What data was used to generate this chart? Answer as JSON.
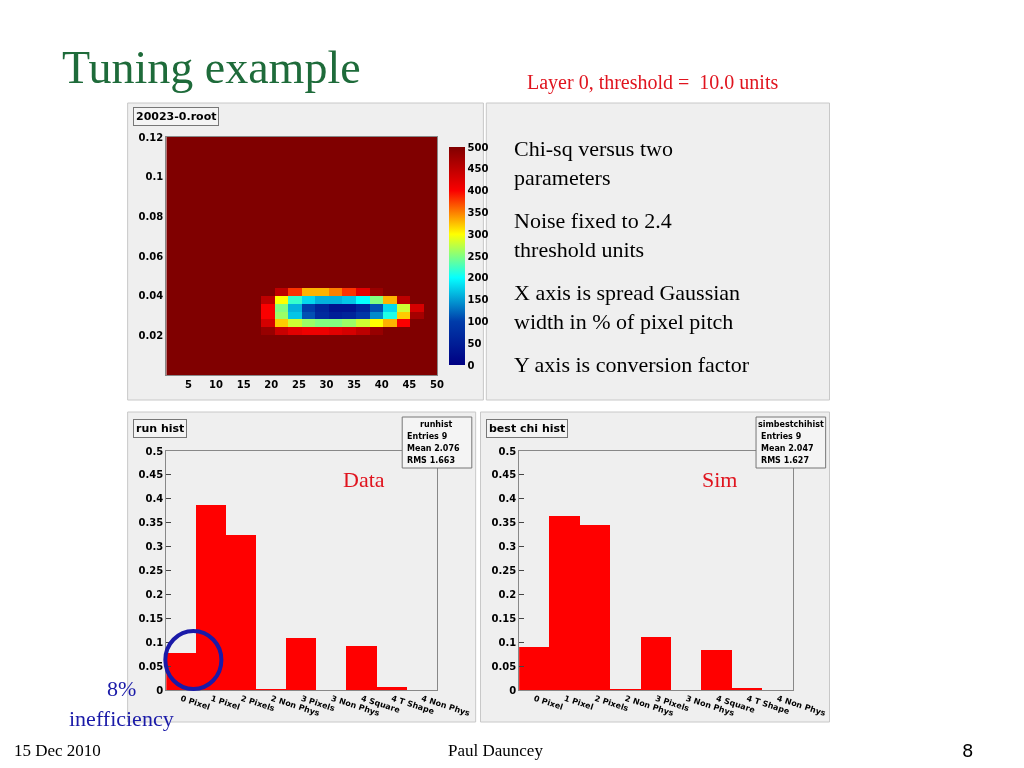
{
  "chart_data": [
    {
      "type": "heatmap",
      "title": "Tuning example",
      "annotations": [
        "20023-0.root",
        "15 Dec 2010",
        "Paul Dauncey",
        "8"
      ],
      "x": [
        2.225,
        4.675,
        7.125,
        9.575,
        12.025,
        14.475,
        16.925,
        19.375,
        21.825,
        24.275,
        26.725,
        29.175,
        31.625,
        34.075,
        36.525,
        38.975,
        41.425,
        43.875,
        46.325,
        48.775
      ],
      "y": [
        0.118,
        0.114,
        0.11,
        0.106,
        0.102,
        0.098,
        0.094,
        0.09,
        0.086,
        0.082,
        0.078,
        0.074,
        0.07,
        0.066,
        0.062,
        0.058,
        0.054,
        0.05,
        0.046,
        0.042,
        0.038,
        0.034,
        0.03,
        0.026,
        0.022,
        0.018,
        0.014,
        0.01,
        0.006,
        0.002
      ],
      "cells": [
        [
          500,
          500,
          500,
          500,
          500,
          500,
          500,
          500,
          500,
          500,
          500,
          500,
          500,
          500,
          500,
          500,
          500,
          500,
          500,
          500
        ],
        [
          500,
          500,
          500,
          500,
          500,
          500,
          500,
          500,
          500,
          500,
          500,
          500,
          500,
          500,
          500,
          500,
          500,
          500,
          500,
          500
        ],
        [
          500,
          500,
          500,
          500,
          500,
          500,
          500,
          500,
          500,
          500,
          500,
          500,
          500,
          500,
          500,
          500,
          500,
          500,
          500,
          500
        ],
        [
          500,
          500,
          500,
          500,
          500,
          500,
          500,
          500,
          500,
          500,
          500,
          500,
          500,
          500,
          500,
          500,
          500,
          500,
          500,
          500
        ],
        [
          500,
          500,
          500,
          500,
          500,
          500,
          500,
          500,
          500,
          500,
          500,
          500,
          500,
          500,
          500,
          500,
          500,
          500,
          500,
          500
        ],
        [
          500,
          500,
          500,
          500,
          500,
          500,
          500,
          500,
          500,
          500,
          500,
          500,
          500,
          500,
          500,
          500,
          500,
          500,
          500,
          500
        ],
        [
          500,
          500,
          500,
          500,
          500,
          500,
          500,
          500,
          500,
          500,
          500,
          500,
          500,
          500,
          500,
          500,
          500,
          500,
          500,
          500
        ],
        [
          500,
          500,
          500,
          500,
          500,
          500,
          500,
          500,
          500,
          500,
          500,
          500,
          500,
          500,
          500,
          500,
          500,
          500,
          500,
          500
        ],
        [
          500,
          500,
          500,
          500,
          500,
          500,
          500,
          500,
          500,
          500,
          500,
          500,
          500,
          500,
          500,
          500,
          500,
          500,
          500,
          500
        ],
        [
          500,
          500,
          500,
          500,
          500,
          500,
          500,
          500,
          500,
          500,
          500,
          500,
          500,
          500,
          500,
          500,
          500,
          500,
          500,
          500
        ],
        [
          500,
          500,
          500,
          500,
          500,
          500,
          500,
          500,
          500,
          500,
          500,
          500,
          500,
          500,
          500,
          500,
          500,
          500,
          500,
          500
        ],
        [
          500,
          500,
          500,
          500,
          500,
          500,
          500,
          500,
          500,
          500,
          500,
          500,
          500,
          500,
          500,
          500,
          500,
          500,
          500,
          500
        ],
        [
          500,
          500,
          500,
          500,
          500,
          500,
          500,
          500,
          500,
          500,
          500,
          500,
          500,
          500,
          500,
          500,
          500,
          500,
          500,
          500
        ],
        [
          500,
          500,
          500,
          500,
          500,
          500,
          500,
          500,
          500,
          500,
          500,
          500,
          500,
          500,
          500,
          500,
          500,
          500,
          500,
          500
        ],
        [
          500,
          500,
          500,
          500,
          500,
          500,
          500,
          500,
          500,
          500,
          500,
          500,
          500,
          500,
          500,
          500,
          500,
          500,
          500,
          500
        ],
        [
          500,
          500,
          500,
          500,
          500,
          500,
          500,
          500,
          500,
          500,
          500,
          500,
          500,
          500,
          500,
          500,
          500,
          500,
          500,
          500
        ],
        [
          500,
          500,
          500,
          500,
          500,
          500,
          500,
          500,
          500,
          500,
          500,
          500,
          500,
          500,
          500,
          500,
          500,
          500,
          500,
          500
        ],
        [
          500,
          500,
          500,
          500,
          500,
          500,
          500,
          500,
          500,
          500,
          500,
          500,
          500,
          500,
          500,
          500,
          500,
          500,
          500,
          500
        ],
        [
          500,
          500,
          500,
          500,
          500,
          500,
          500,
          500,
          500,
          500,
          500,
          500,
          500,
          500,
          500,
          500,
          500,
          500,
          500,
          500
        ],
        [
          500,
          500,
          500,
          500,
          500,
          500,
          500,
          500,
          450,
          380,
          330,
          330,
          350,
          380,
          420,
          480,
          500,
          500,
          500,
          500
        ],
        [
          500,
          500,
          500,
          500,
          500,
          500,
          500,
          450,
          300,
          220,
          180,
          160,
          160,
          170,
          200,
          250,
          330,
          450,
          500,
          500
        ],
        [
          500,
          500,
          500,
          500,
          500,
          500,
          500,
          400,
          250,
          160,
          100,
          60,
          30,
          30,
          60,
          110,
          180,
          280,
          430,
          500
        ],
        [
          500,
          500,
          500,
          500,
          500,
          500,
          500,
          400,
          260,
          170,
          110,
          70,
          50,
          60,
          90,
          140,
          210,
          320,
          470,
          500
        ],
        [
          500,
          500,
          500,
          500,
          500,
          500,
          500,
          430,
          320,
          280,
          260,
          250,
          250,
          260,
          280,
          300,
          330,
          400,
          500,
          500
        ],
        [
          500,
          500,
          500,
          500,
          500,
          500,
          500,
          480,
          440,
          420,
          410,
          410,
          420,
          430,
          450,
          480,
          500,
          500,
          500,
          500
        ],
        [
          500,
          500,
          500,
          500,
          500,
          500,
          500,
          500,
          500,
          500,
          500,
          500,
          500,
          500,
          500,
          500,
          500,
          500,
          500,
          500
        ],
        [
          500,
          500,
          500,
          500,
          500,
          500,
          500,
          500,
          500,
          500,
          500,
          500,
          500,
          500,
          500,
          500,
          500,
          500,
          500,
          500
        ],
        [
          500,
          500,
          500,
          500,
          500,
          500,
          500,
          500,
          500,
          500,
          500,
          500,
          500,
          500,
          500,
          500,
          500,
          500,
          500,
          500
        ],
        [
          500,
          500,
          500,
          500,
          500,
          500,
          500,
          500,
          500,
          500,
          500,
          500,
          500,
          500,
          500,
          500,
          500,
          500,
          500,
          500
        ],
        [
          500,
          500,
          500,
          500,
          500,
          500,
          500,
          500,
          500,
          500,
          500,
          500,
          500,
          500,
          500,
          500,
          500,
          500,
          500,
          500
        ]
      ],
      "clim": [
        0,
        500
      ],
      "cticks": [
        0,
        50,
        100,
        150,
        200,
        250,
        300,
        350,
        400,
        450,
        500
      ],
      "xlim": [
        1,
        50
      ],
      "xticks": [
        5,
        10,
        15,
        20,
        25,
        30,
        35,
        40,
        45,
        50
      ],
      "ylim": [
        0,
        0.12
      ],
      "yticks": [
        0.02,
        0.04,
        0.06,
        0.08,
        0.1,
        0.12
      ]
    },
    {
      "type": "other",
      "subtitle": "Layer 0, threshold =  10.0 units",
      "annotations": [
        "Chi-sq versus two parameters",
        "Noise fixed to 2.4 threshold units",
        "X axis is spread Gaussian width in % of pixel pitch",
        "Y axis is conversion factor"
      ]
    },
    {
      "type": "bar",
      "categories": [
        "0 Pixel",
        "1 Pixel",
        "2 Pixels",
        "2 Non Phys",
        "3 Pixels",
        "3 Non Phys",
        "4 Square",
        "4 T Shape",
        "4 Non Phys"
      ],
      "values": [
        0.078,
        0.388,
        0.324,
        0.001,
        0.109,
        0,
        0.092,
        0.006,
        0
      ],
      "color": "#ff0000",
      "ylim": [
        0,
        0.5
      ],
      "yticks": [
        0,
        0.05,
        0.1,
        0.15,
        0.2,
        0.25,
        0.3,
        0.35,
        0.4,
        0.45,
        0.5
      ],
      "annotations": [
        "run hist",
        "runhist",
        "Entries 9",
        "Mean 2.076",
        "RMS 1.663",
        "Data",
        "8%",
        "inefficiency"
      ]
    },
    {
      "type": "bar",
      "categories": [
        "0 Pixel",
        "1 Pixel",
        "2 Pixels",
        "2 Non Phys",
        "3 Pixels",
        "3 Non Phys",
        "4 Square",
        "4 T Shape",
        "4 Non Phys"
      ],
      "values": [
        0.089,
        0.363,
        0.345,
        0.002,
        0.111,
        0,
        0.084,
        0.005,
        0
      ],
      "color": "#ff0000",
      "ylim": [
        0,
        0.5
      ],
      "yticks": [
        0,
        0.05,
        0.1,
        0.15,
        0.2,
        0.25,
        0.3,
        0.35,
        0.4,
        0.45,
        0.5
      ],
      "annotations": [
        "best chi hist",
        "simbestchihist",
        "Entries 9",
        "Mean 2.047",
        "RMS 1.627",
        "Sim"
      ]
    }
  ]
}
